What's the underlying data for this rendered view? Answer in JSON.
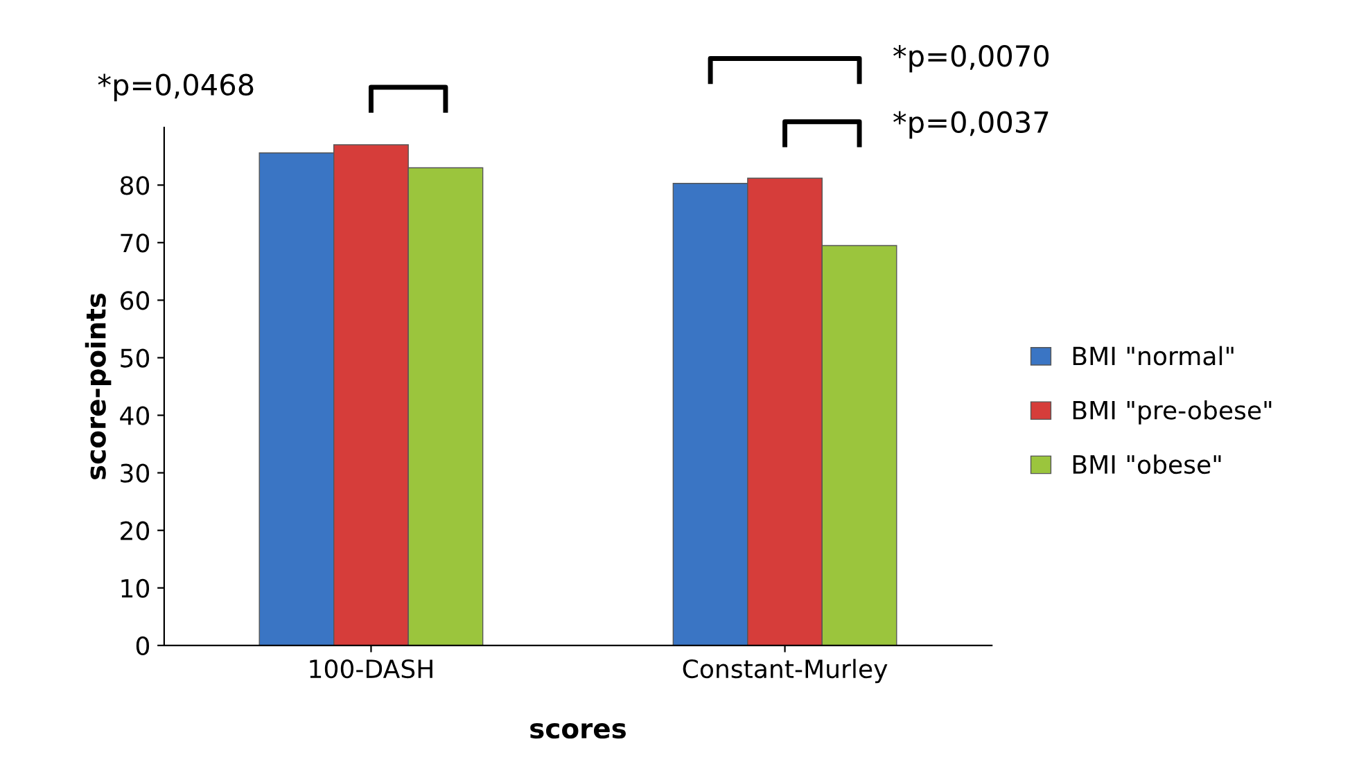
{
  "chart_data": {
    "type": "bar",
    "xlabel": "scores",
    "ylabel": "score-points",
    "categories": [
      "100-DASH",
      "Constant-Murley"
    ],
    "series": [
      {
        "name": "BMI \"normal\"",
        "color": "#3a75c4",
        "values": [
          85.6,
          80.3
        ]
      },
      {
        "name": "BMI \"pre-obese\"",
        "color": "#d63d3a",
        "values": [
          87.0,
          81.2
        ]
      },
      {
        "name": "BMI \"obese\"",
        "color": "#9bc53d",
        "values": [
          83.0,
          69.5
        ]
      }
    ],
    "ylim": [
      0,
      90
    ],
    "yticks": [
      0,
      10,
      20,
      30,
      40,
      50,
      60,
      70,
      80
    ],
    "grid": false,
    "legend": "right",
    "annotations": [
      "*p=0,0468",
      "*p=0,0070",
      "*p=0,0037"
    ]
  }
}
